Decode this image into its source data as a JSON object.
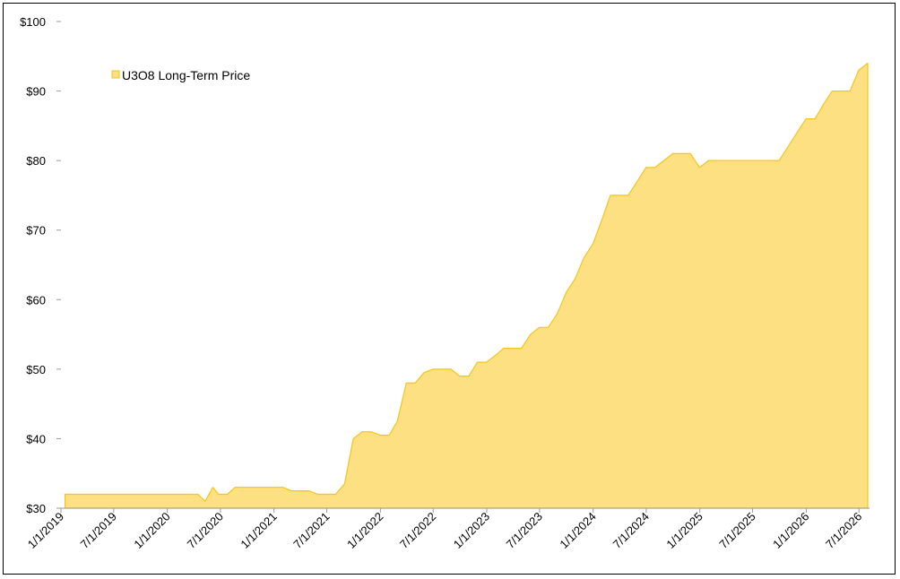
{
  "chart_data": {
    "type": "area",
    "series": [
      {
        "name": "U3O8 Long-Term Price",
        "color": "#FDE082",
        "stroke": "#F5C518",
        "points": [
          [
            "2019-01-15",
            32
          ],
          [
            "2019-06-30",
            32
          ],
          [
            "2019-12-31",
            32
          ],
          [
            "2020-04-15",
            32
          ],
          [
            "2020-05-10",
            31
          ],
          [
            "2020-06-05",
            33
          ],
          [
            "2020-06-25",
            32
          ],
          [
            "2020-07-25",
            32
          ],
          [
            "2020-08-20",
            33
          ],
          [
            "2020-12-31",
            33
          ],
          [
            "2021-01-31",
            33
          ],
          [
            "2021-03-01",
            32.5
          ],
          [
            "2021-04-30",
            32.5
          ],
          [
            "2021-06-01",
            32
          ],
          [
            "2021-07-31",
            32
          ],
          [
            "2021-08-31",
            33.5
          ],
          [
            "2021-09-30",
            40
          ],
          [
            "2021-10-31",
            41
          ],
          [
            "2021-11-30",
            41
          ],
          [
            "2021-12-31",
            40.5
          ],
          [
            "2022-01-31",
            40.5
          ],
          [
            "2022-02-28",
            42.5
          ],
          [
            "2022-03-31",
            48
          ],
          [
            "2022-04-30",
            48
          ],
          [
            "2022-05-31",
            49.5
          ],
          [
            "2022-06-30",
            50
          ],
          [
            "2022-08-31",
            50
          ],
          [
            "2022-09-30",
            49
          ],
          [
            "2022-10-31",
            49
          ],
          [
            "2022-11-30",
            51
          ],
          [
            "2022-12-31",
            51
          ],
          [
            "2023-01-31",
            52
          ],
          [
            "2023-02-28",
            53
          ],
          [
            "2023-03-31",
            53
          ],
          [
            "2023-04-30",
            53
          ],
          [
            "2023-05-31",
            55
          ],
          [
            "2023-06-30",
            56
          ],
          [
            "2023-07-31",
            56
          ],
          [
            "2023-08-31",
            58
          ],
          [
            "2023-09-30",
            61
          ],
          [
            "2023-10-31",
            63
          ],
          [
            "2023-11-30",
            66
          ],
          [
            "2023-12-31",
            68
          ],
          [
            "2024-01-31",
            71.5
          ],
          [
            "2024-02-29",
            75
          ],
          [
            "2024-03-31",
            75
          ],
          [
            "2024-04-30",
            75
          ],
          [
            "2024-05-31",
            77
          ],
          [
            "2024-06-30",
            79
          ],
          [
            "2024-07-31",
            79
          ],
          [
            "2024-08-31",
            80
          ],
          [
            "2024-09-30",
            81
          ],
          [
            "2024-10-31",
            81
          ],
          [
            "2024-11-30",
            81
          ],
          [
            "2024-12-31",
            79
          ],
          [
            "2025-01-31",
            80
          ],
          [
            "2025-03-01",
            80
          ],
          [
            "2025-05-31",
            80
          ],
          [
            "2025-08-31",
            80
          ],
          [
            "2025-09-30",
            80
          ],
          [
            "2025-10-31",
            82
          ],
          [
            "2025-11-30",
            84
          ],
          [
            "2025-12-31",
            86
          ],
          [
            "2026-01-31",
            86
          ],
          [
            "2026-02-28",
            88
          ],
          [
            "2026-03-31",
            90
          ],
          [
            "2026-05-31",
            90
          ],
          [
            "2026-06-30",
            93
          ],
          [
            "2026-07-31",
            94
          ]
        ]
      }
    ],
    "xlim": [
      "2019-01-01",
      "2026-07-31"
    ],
    "ylim": [
      30,
      100
    ],
    "x_ticks": [
      "1/1/2019",
      "7/1/2019",
      "1/1/2020",
      "7/1/2020",
      "1/1/2021",
      "7/1/2021",
      "1/1/2022",
      "7/1/2022",
      "1/1/2023",
      "7/1/2023",
      "1/1/2024",
      "7/1/2024",
      "1/1/2025",
      "7/1/2025",
      "1/1/2026",
      "7/1/2026"
    ],
    "y_ticks": [
      {
        "value": 30,
        "label": "$30"
      },
      {
        "value": 40,
        "label": "$40"
      },
      {
        "value": 50,
        "label": "$50"
      },
      {
        "value": 60,
        "label": "$60"
      },
      {
        "value": 70,
        "label": "$70"
      },
      {
        "value": 80,
        "label": "$80"
      },
      {
        "value": 90,
        "label": "$90"
      },
      {
        "value": 100,
        "label": "$100"
      }
    ],
    "grid": false,
    "legend_position": "top-left"
  }
}
